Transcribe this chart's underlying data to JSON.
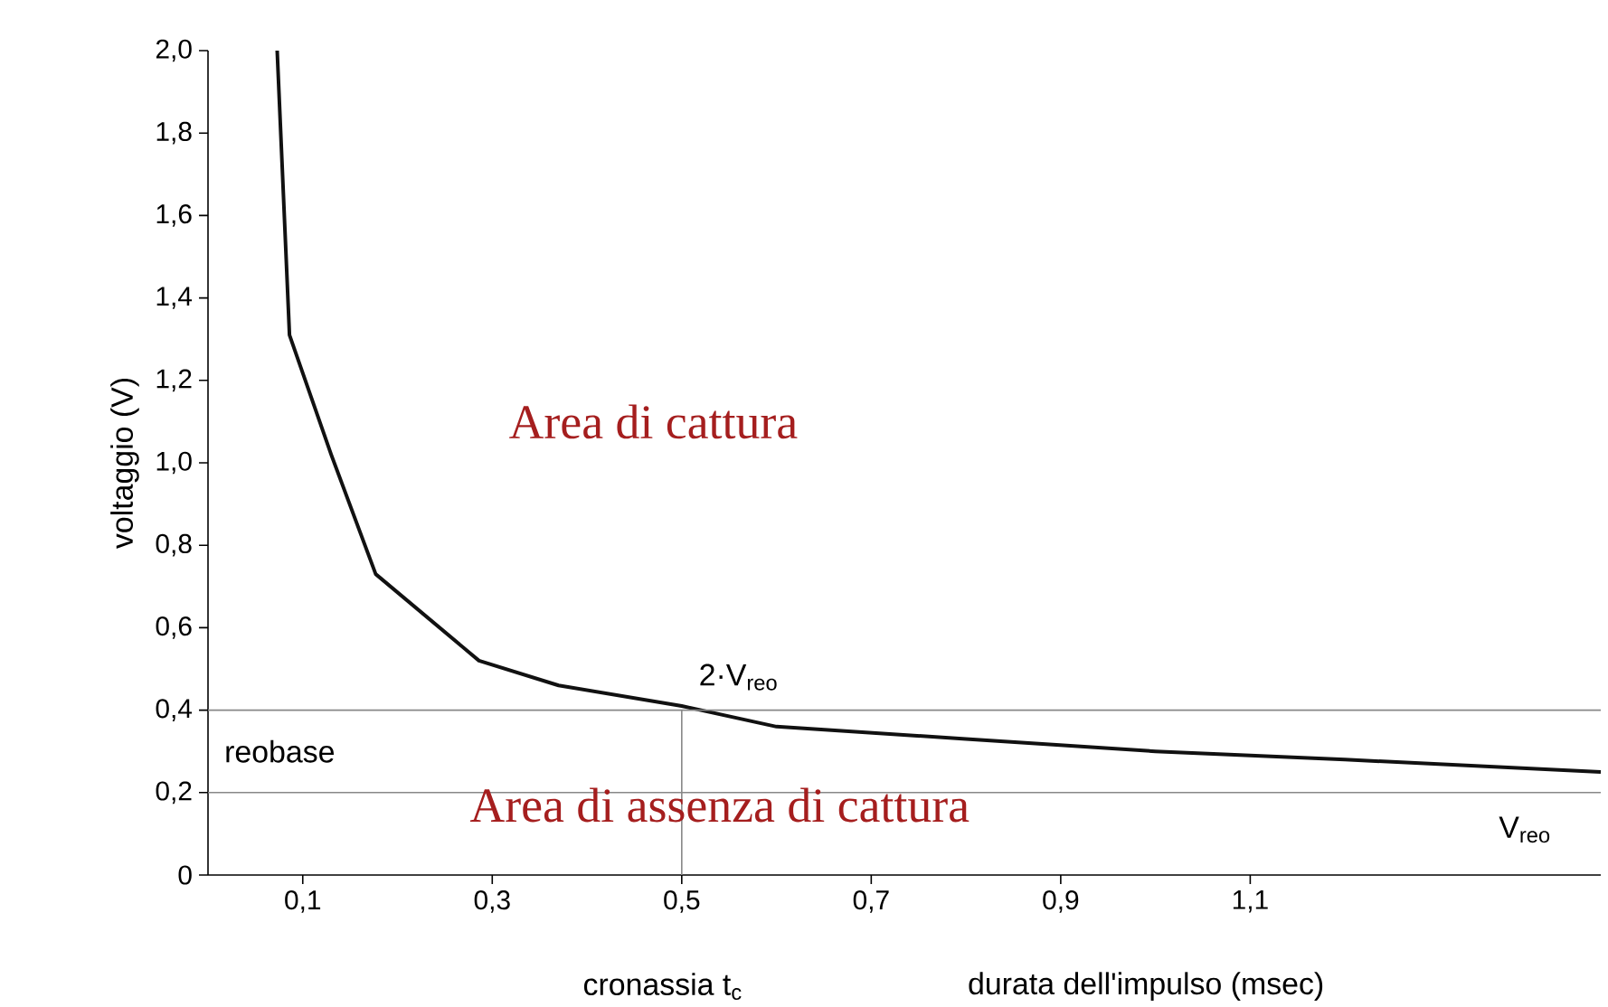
{
  "chart_data": {
    "type": "line",
    "xlabel": "durata dell'impulso (msec)",
    "ylabel": "voltaggio (V)",
    "xlim": [
      0,
      1.47
    ],
    "ylim": [
      0,
      2.0
    ],
    "xticks": [
      {
        "value": 0.1,
        "label": "0,1"
      },
      {
        "value": 0.3,
        "label": "0,3"
      },
      {
        "value": 0.5,
        "label": "0,5"
      },
      {
        "value": 0.7,
        "label": "0,7"
      },
      {
        "value": 0.9,
        "label": "0,9"
      },
      {
        "value": 1.1,
        "label": "1,1"
      }
    ],
    "yticks": [
      {
        "value": 0,
        "label": "0"
      },
      {
        "value": 0.2,
        "label": "0,2"
      },
      {
        "value": 0.4,
        "label": "0,4"
      },
      {
        "value": 0.6,
        "label": "0,6"
      },
      {
        "value": 0.8,
        "label": "0,8"
      },
      {
        "value": 1.0,
        "label": "1,0"
      },
      {
        "value": 1.2,
        "label": "1,2"
      },
      {
        "value": 1.4,
        "label": "1,4"
      },
      {
        "value": 1.6,
        "label": "1,6"
      },
      {
        "value": 1.8,
        "label": "1,8"
      },
      {
        "value": 2.0,
        "label": "2,0"
      }
    ],
    "series": [
      {
        "color": "#111111",
        "x": [
          0.073,
          0.086,
          0.13,
          0.177,
          0.286,
          0.37,
          0.5,
          0.6,
          0.8,
          1.0,
          1.2,
          1.47
        ],
        "values": [
          2.0,
          1.31,
          1.02,
          0.73,
          0.52,
          0.46,
          0.41,
          0.36,
          0.33,
          0.3,
          0.28,
          0.25
        ]
      }
    ],
    "ref_lines": [
      {
        "axis": "y",
        "value": 0.4,
        "color": "#888888"
      },
      {
        "axis": "y",
        "value": 0.2,
        "color": "#888888"
      },
      {
        "axis": "x",
        "value": 0.5,
        "color": "#888888"
      }
    ],
    "annotations": [
      "Area di cattura",
      "Area di assenza di cattura",
      "reobase",
      "2·V$_{reo}$",
      "V$_{reo}$",
      "cronassia t$_{c}$"
    ],
    "grid": false,
    "marker": "none",
    "line_style": "solid"
  }
}
